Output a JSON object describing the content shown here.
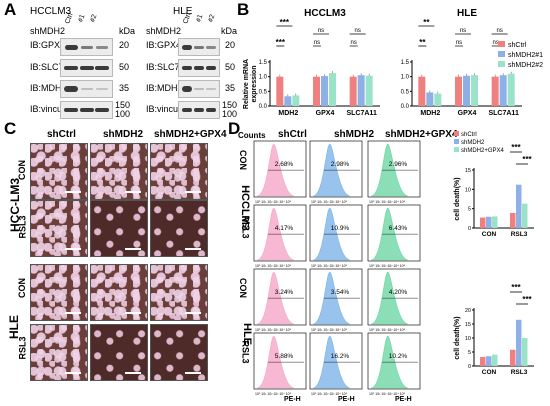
{
  "panels": {
    "A": "A",
    "B": "B",
    "C": "C",
    "D": "D"
  },
  "blotA": {
    "groups": [
      {
        "title": "HCCLM3",
        "sh": "shMDH2",
        "lanes": [
          "Ctrl",
          "#1",
          "#2"
        ]
      },
      {
        "title": "HLE",
        "sh": "shMDH2",
        "lanes": [
          "Ctrl",
          "#1",
          "#2"
        ]
      }
    ],
    "kda": "kDa",
    "rows": [
      {
        "label": "IB:GPX4",
        "mw": "20"
      },
      {
        "label": "IB:SLC7A11",
        "mw": "50"
      },
      {
        "label": "IB:MDH2",
        "mw": "35"
      },
      {
        "label": "IB:vinculin",
        "mw": "150\n100"
      }
    ],
    "mw_vinculin_top": "150",
    "mw_vinculin_bot": "100"
  },
  "chart_data": [
    {
      "type": "bar",
      "title": "HCCLM3",
      "ylabel": "Relative mRNA expression",
      "ylim": [
        0,
        1.5
      ],
      "yticks": [
        "0.0",
        "0.5",
        "1.0",
        "1.5"
      ],
      "categories": [
        "MDH2",
        "GPX4",
        "SLC7A11"
      ],
      "series": [
        {
          "name": "shCtrl",
          "values": [
            1.0,
            1.0,
            1.0
          ],
          "color": "#f08080"
        },
        {
          "name": "shMDH2#1",
          "values": [
            0.33,
            1.02,
            1.05
          ],
          "color": "#8db0e6"
        },
        {
          "name": "shMDH2#2",
          "values": [
            0.36,
            1.12,
            1.03
          ],
          "color": "#9be3c8"
        }
      ],
      "sig": [
        "***",
        "***",
        "ns",
        "ns",
        "ns",
        "ns"
      ]
    },
    {
      "type": "bar",
      "title": "HLE",
      "ylim": [
        0,
        1.5
      ],
      "yticks": [
        "0.0",
        "0.5",
        "1.0",
        "1.5"
      ],
      "categories": [
        "MDH2",
        "GPX4",
        "SLC7A11"
      ],
      "series": [
        {
          "name": "shCtrl",
          "values": [
            1.0,
            1.0,
            1.0
          ],
          "color": "#f08080"
        },
        {
          "name": "shMDH2#1",
          "values": [
            0.46,
            1.03,
            1.05
          ],
          "color": "#8db0e6"
        },
        {
          "name": "shMDH2#2",
          "values": [
            0.42,
            1.05,
            1.1
          ],
          "color": "#9be3c8"
        }
      ],
      "sig": [
        "**",
        "**",
        "ns",
        "ns",
        "ns",
        "ns"
      ],
      "legend": [
        "shCtrl",
        "shMDH2#1",
        "shMDH2#2"
      ]
    },
    {
      "type": "bar",
      "title": "",
      "ylabel": "cell death(%)",
      "ylim": [
        0,
        15
      ],
      "yticks": [
        "0",
        "5",
        "10",
        "15"
      ],
      "categories": [
        "CON",
        "RSL3"
      ],
      "series": [
        {
          "name": "shCtrl",
          "values": [
            2.7,
            3.9
          ],
          "color": "#f08080"
        },
        {
          "name": "shMDH2",
          "values": [
            2.9,
            11.2
          ],
          "color": "#8db0e6"
        },
        {
          "name": "shMDH2+GPX4",
          "values": [
            3.0,
            6.3
          ],
          "color": "#9be3c8"
        }
      ],
      "sig": [
        "***",
        "***"
      ],
      "legend": [
        "shCtrl",
        "shMDH2",
        "shMDH2+GPX4"
      ]
    },
    {
      "type": "bar",
      "title": "",
      "ylabel": "cell death(%)",
      "ylim": [
        0,
        20
      ],
      "yticks": [
        "0",
        "5",
        "10",
        "15",
        "20"
      ],
      "categories": [
        "CON",
        "RSL3"
      ],
      "series": [
        {
          "name": "shCtrl",
          "values": [
            3.2,
            5.8
          ],
          "color": "#f08080"
        },
        {
          "name": "shMDH2",
          "values": [
            3.5,
            16.5
          ],
          "color": "#8db0e6"
        },
        {
          "name": "shMDH2+GPX4",
          "values": [
            4.1,
            10.0
          ],
          "color": "#9be3c8"
        }
      ],
      "sig": [
        "***",
        "***"
      ]
    }
  ],
  "panelC": {
    "cols": [
      "shCtrl",
      "shMDH2",
      "shMDH2+GPX4"
    ],
    "groups": [
      "HCC-LM3",
      "HLE"
    ],
    "rows": [
      "CON",
      "RSL3",
      "CON",
      "RSL3"
    ]
  },
  "panelD": {
    "counts": "Counts",
    "cols": [
      "shCtrl",
      "shMDH2",
      "shMDH2+GPX4"
    ],
    "groups": [
      "HCCLM3",
      "HLE"
    ],
    "rows": [
      "CON",
      "RSL3",
      "CON",
      "RSL3"
    ],
    "pcts": [
      [
        "2.68%",
        "2.98%",
        "2.96%"
      ],
      [
        "4.17%",
        "10.9%",
        "6.43%"
      ],
      [
        "3.24%",
        "3.54%",
        "4.20%"
      ],
      [
        "5.88%",
        "16.2%",
        "10.2%"
      ]
    ],
    "xaxis": "PE-H",
    "colors": [
      "#f4a6c8",
      "#7db4e8",
      "#6fd6a4"
    ]
  }
}
